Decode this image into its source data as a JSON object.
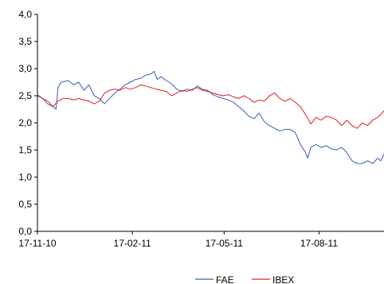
{
  "chart_data": {
    "type": "line",
    "title": "",
    "xlabel": "",
    "ylabel": "",
    "ylim": [
      0,
      4
    ],
    "yticks": [
      "0,0",
      "0,5",
      "1,0",
      "1,5",
      "2,0",
      "2,5",
      "3,0",
      "3,5",
      "4,0"
    ],
    "xticks": [
      {
        "label": "17-11-10",
        "day": 0
      },
      {
        "label": "17-02-11",
        "day": 92
      },
      {
        "label": "17-05-11",
        "day": 181
      },
      {
        "label": "17-08-11",
        "day": 273
      }
    ],
    "xlim_days": [
      0,
      336
    ],
    "grid": false,
    "legend": "bottom-center",
    "series": [
      {
        "name": "FAE",
        "color": "#3a5fb0",
        "points": [
          [
            0,
            2.5
          ],
          [
            5,
            2.45
          ],
          [
            10,
            2.35
          ],
          [
            15,
            2.3
          ],
          [
            18,
            2.25
          ],
          [
            20,
            2.65
          ],
          [
            23,
            2.75
          ],
          [
            30,
            2.78
          ],
          [
            35,
            2.7
          ],
          [
            40,
            2.75
          ],
          [
            45,
            2.6
          ],
          [
            50,
            2.7
          ],
          [
            55,
            2.5
          ],
          [
            60,
            2.45
          ],
          [
            65,
            2.35
          ],
          [
            70,
            2.45
          ],
          [
            75,
            2.55
          ],
          [
            80,
            2.62
          ],
          [
            85,
            2.7
          ],
          [
            90,
            2.75
          ],
          [
            95,
            2.8
          ],
          [
            100,
            2.82
          ],
          [
            105,
            2.88
          ],
          [
            110,
            2.9
          ],
          [
            113,
            2.95
          ],
          [
            116,
            2.8
          ],
          [
            120,
            2.85
          ],
          [
            125,
            2.78
          ],
          [
            130,
            2.72
          ],
          [
            135,
            2.62
          ],
          [
            140,
            2.58
          ],
          [
            145,
            2.62
          ],
          [
            150,
            2.6
          ],
          [
            155,
            2.68
          ],
          [
            160,
            2.62
          ],
          [
            165,
            2.6
          ],
          [
            170,
            2.52
          ],
          [
            175,
            2.48
          ],
          [
            180,
            2.45
          ],
          [
            185,
            2.42
          ],
          [
            190,
            2.38
          ],
          [
            195,
            2.3
          ],
          [
            200,
            2.22
          ],
          [
            205,
            2.12
          ],
          [
            210,
            2.08
          ],
          [
            215,
            2.18
          ],
          [
            220,
            2.02
          ],
          [
            225,
            1.95
          ],
          [
            230,
            1.9
          ],
          [
            235,
            1.85
          ],
          [
            240,
            1.88
          ],
          [
            245,
            1.88
          ],
          [
            250,
            1.82
          ],
          [
            255,
            1.6
          ],
          [
            260,
            1.45
          ],
          [
            262,
            1.35
          ],
          [
            265,
            1.55
          ],
          [
            270,
            1.6
          ],
          [
            275,
            1.55
          ],
          [
            280,
            1.58
          ],
          [
            285,
            1.52
          ],
          [
            290,
            1.5
          ],
          [
            295,
            1.55
          ],
          [
            300,
            1.45
          ],
          [
            305,
            1.3
          ],
          [
            310,
            1.25
          ],
          [
            315,
            1.25
          ],
          [
            320,
            1.3
          ],
          [
            325,
            1.25
          ],
          [
            330,
            1.35
          ],
          [
            333,
            1.3
          ],
          [
            336,
            1.43
          ]
        ]
      },
      {
        "name": "IBEX",
        "color": "#e02020",
        "points": [
          [
            0,
            2.52
          ],
          [
            5,
            2.45
          ],
          [
            10,
            2.4
          ],
          [
            15,
            2.3
          ],
          [
            20,
            2.4
          ],
          [
            25,
            2.45
          ],
          [
            30,
            2.45
          ],
          [
            35,
            2.42
          ],
          [
            40,
            2.45
          ],
          [
            45,
            2.42
          ],
          [
            50,
            2.4
          ],
          [
            55,
            2.35
          ],
          [
            60,
            2.4
          ],
          [
            65,
            2.55
          ],
          [
            70,
            2.6
          ],
          [
            75,
            2.62
          ],
          [
            80,
            2.6
          ],
          [
            85,
            2.65
          ],
          [
            90,
            2.62
          ],
          [
            95,
            2.65
          ],
          [
            100,
            2.7
          ],
          [
            105,
            2.68
          ],
          [
            110,
            2.65
          ],
          [
            115,
            2.62
          ],
          [
            120,
            2.6
          ],
          [
            125,
            2.58
          ],
          [
            130,
            2.5
          ],
          [
            135,
            2.55
          ],
          [
            140,
            2.6
          ],
          [
            145,
            2.58
          ],
          [
            150,
            2.62
          ],
          [
            155,
            2.65
          ],
          [
            160,
            2.6
          ],
          [
            165,
            2.58
          ],
          [
            170,
            2.55
          ],
          [
            175,
            2.52
          ],
          [
            180,
            2.5
          ],
          [
            185,
            2.52
          ],
          [
            190,
            2.48
          ],
          [
            195,
            2.45
          ],
          [
            200,
            2.5
          ],
          [
            205,
            2.45
          ],
          [
            210,
            2.38
          ],
          [
            215,
            2.42
          ],
          [
            220,
            2.4
          ],
          [
            225,
            2.5
          ],
          [
            230,
            2.55
          ],
          [
            235,
            2.45
          ],
          [
            240,
            2.4
          ],
          [
            245,
            2.45
          ],
          [
            250,
            2.38
          ],
          [
            255,
            2.3
          ],
          [
            260,
            2.15
          ],
          [
            265,
            1.98
          ],
          [
            270,
            2.1
          ],
          [
            275,
            2.05
          ],
          [
            280,
            2.12
          ],
          [
            285,
            2.1
          ],
          [
            290,
            2.05
          ],
          [
            295,
            1.95
          ],
          [
            300,
            2.05
          ],
          [
            305,
            1.95
          ],
          [
            310,
            1.9
          ],
          [
            315,
            2.0
          ],
          [
            320,
            1.95
          ],
          [
            325,
            2.05
          ],
          [
            330,
            2.1
          ],
          [
            336,
            2.22
          ]
        ]
      }
    ]
  }
}
